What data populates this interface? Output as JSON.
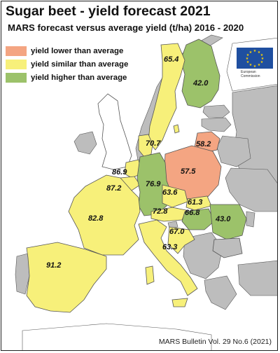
{
  "title": "Sugar beet - yield forecast 2021",
  "subtitle": "MARS forecast versus average yield (t/ha) 2016 - 2020",
  "legend": [
    {
      "label": "yield lower than average",
      "color": "#f4a582"
    },
    {
      "label": "yield similar than average",
      "color": "#f7f07a"
    },
    {
      "label": "yield higher than average",
      "color": "#9cc26a"
    }
  ],
  "colors": {
    "sea": "#ffffff",
    "non_eu_land": "#ffffff",
    "no_data": "#bdbdbd",
    "border": "#555555"
  },
  "logo": {
    "name": "eu-flag-logo",
    "caption": "European Commission"
  },
  "values": [
    {
      "id": "finland",
      "label": "42.0",
      "category": "higher"
    },
    {
      "id": "sweden",
      "label": "65.4",
      "category": "similar"
    },
    {
      "id": "lithuania",
      "label": "58.2",
      "category": "lower"
    },
    {
      "id": "denmark",
      "label": "70.7",
      "category": "similar"
    },
    {
      "id": "netherlands",
      "label": "86.9",
      "category": "similar"
    },
    {
      "id": "belgium",
      "label": "87.2",
      "category": "similar"
    },
    {
      "id": "germany",
      "label": "76.9",
      "category": "higher"
    },
    {
      "id": "poland",
      "label": "57.5",
      "category": "lower"
    },
    {
      "id": "czechia",
      "label": "63.6",
      "category": "similar"
    },
    {
      "id": "slovakia",
      "label": "61.3",
      "category": "similar"
    },
    {
      "id": "france",
      "label": "82.8",
      "category": "similar"
    },
    {
      "id": "austria",
      "label": "72.8",
      "category": "similar"
    },
    {
      "id": "hungary",
      "label": "66.8",
      "category": "higher"
    },
    {
      "id": "romania",
      "label": "43.0",
      "category": "higher"
    },
    {
      "id": "croatia",
      "label": "67.0",
      "category": "similar"
    },
    {
      "id": "italy",
      "label": "63.3",
      "category": "similar"
    },
    {
      "id": "spain",
      "label": "91.2",
      "category": "similar"
    }
  ],
  "footer": "MARS Bulletin Vol. 29 No.6 (2021)"
}
